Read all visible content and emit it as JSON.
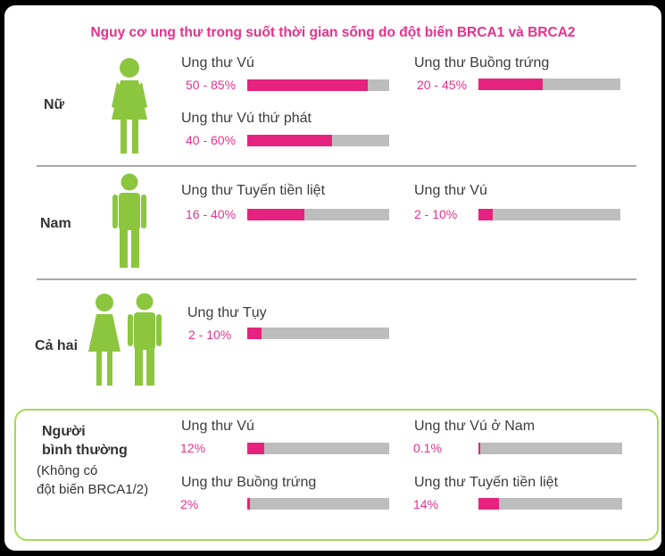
{
  "title": "Nguy cơ ung thư trong suốt thời gian sống do đột biến BRCA1 và BRCA2",
  "colors": {
    "accent": "#e5237f",
    "figure_green": "#8cc63f",
    "bar_bg": "#bdbdbd",
    "box_border": "#a6d95a"
  },
  "groups": {
    "female": {
      "label": "Nữ",
      "icon": "female-figure-icon",
      "items": [
        {
          "name": "Ung thư Vú",
          "range": "50 - 85%",
          "fill": 0.85
        },
        {
          "name": "Ung thư Buồng trứng",
          "range": "20 - 45%",
          "fill": 0.45
        },
        {
          "name": "Ung thư Vú thứ phát",
          "range": "40 - 60%",
          "fill": 0.6
        }
      ]
    },
    "male": {
      "label": "Nam",
      "icon": "male-figure-icon",
      "items": [
        {
          "name": "Ung thư Tuyến tiền liệt",
          "range": "16 - 40%",
          "fill": 0.4
        },
        {
          "name": "Ung thư Vú",
          "range": "2 - 10%",
          "fill": 0.1
        }
      ]
    },
    "both": {
      "label": "Cả hai",
      "icon": "couple-figure-icon",
      "items": [
        {
          "name": "Ung thư Tụy",
          "range": "2 - 10%",
          "fill": 0.1
        }
      ]
    },
    "normal": {
      "label_line1": "Người",
      "label_line2": "bình thường",
      "note_line1": "(Không có",
      "note_line2": "đột biến BRCA1/2)",
      "items": [
        {
          "name": "Ung thư Vú",
          "range": "12%",
          "fill": 0.12
        },
        {
          "name": "Ung thư Vú ở Nam",
          "range": "0.1%",
          "fill": 0.001
        },
        {
          "name": "Ung thư Buồng trứng",
          "range": "2%",
          "fill": 0.02
        },
        {
          "name": "Ung thư Tuyến tiền liệt",
          "range": "14%",
          "fill": 0.14
        }
      ]
    }
  }
}
